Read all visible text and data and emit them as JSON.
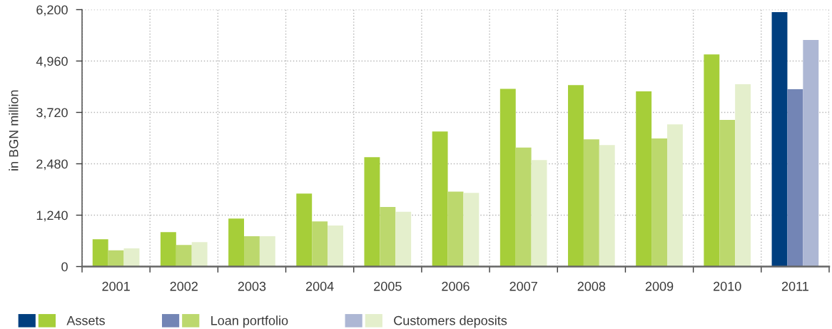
{
  "chart_data": {
    "type": "bar",
    "ylabel": "in BGN million",
    "categories": [
      "2001",
      "2002",
      "2003",
      "2004",
      "2005",
      "2006",
      "2007",
      "2008",
      "2009",
      "2010",
      "2011"
    ],
    "series": [
      {
        "name": "Assets",
        "values": [
          660,
          830,
          1160,
          1760,
          2640,
          3260,
          4290,
          4380,
          4230,
          5120,
          6140
        ],
        "colors": [
          "#a6ce39",
          "#a6ce39",
          "#a6ce39",
          "#a6ce39",
          "#a6ce39",
          "#a6ce39",
          "#a6ce39",
          "#a6ce39",
          "#a6ce39",
          "#a6ce39",
          "#003f7f"
        ]
      },
      {
        "name": "Loan portfolio",
        "values": [
          390,
          520,
          730,
          1090,
          1440,
          1810,
          2870,
          3070,
          3090,
          3540,
          4280
        ],
        "colors": [
          "#bcd86d",
          "#bcd86d",
          "#bcd86d",
          "#bcd86d",
          "#bcd86d",
          "#bcd86d",
          "#bcd86d",
          "#bcd86d",
          "#bcd86d",
          "#bcd86d",
          "#7385b5"
        ]
      },
      {
        "name": "Customers deposits",
        "values": [
          440,
          590,
          730,
          990,
          1320,
          1780,
          2570,
          2930,
          3430,
          4400,
          5470
        ],
        "colors": [
          "#e4efcc",
          "#e4efcc",
          "#e4efcc",
          "#e4efcc",
          "#e4efcc",
          "#e4efcc",
          "#e4efcc",
          "#e4efcc",
          "#e4efcc",
          "#e4efcc",
          "#adb7d4"
        ]
      }
    ],
    "ylim": [
      0,
      6200
    ],
    "yticks": [
      0,
      {
        "value": 1240,
        "label": "1,240"
      },
      {
        "value": 2480,
        "label": "2,480"
      },
      {
        "value": 3720,
        "label": "3,720"
      },
      {
        "value": 4960,
        "label": "4,960"
      },
      {
        "value": 6200,
        "label": "6,200"
      }
    ],
    "grid": true,
    "legend": "bottom"
  }
}
